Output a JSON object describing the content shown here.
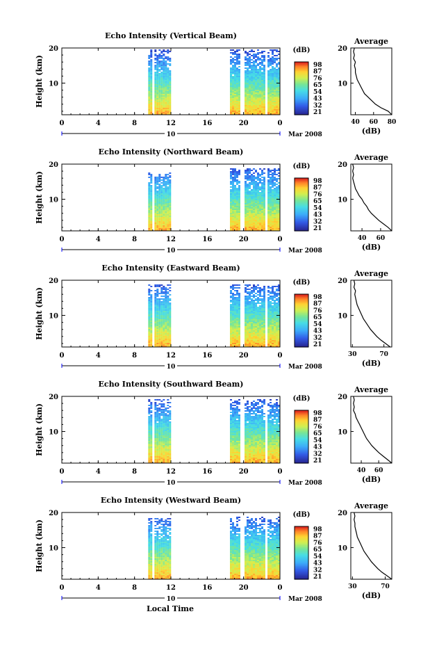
{
  "figure": {
    "xlabel": "Local Time",
    "date_label": "Mar 2008",
    "colorbar_unit": "(dB)",
    "avg_title": "Average",
    "avg_xlabel": "(dB)"
  },
  "chart_data": [
    {
      "type": "heatmap",
      "title": "Echo Intensity (Vertical Beam)",
      "ylabel": "Height (km)",
      "xlabel": "Local Time",
      "x_ticks": [
        "0",
        "4",
        "8",
        "12",
        "16",
        "20",
        "0"
      ],
      "x_range": [
        0,
        24
      ],
      "y_ticks": [
        "10",
        "20"
      ],
      "y_range": [
        1,
        20
      ],
      "date_label": "Mar 2008",
      "day_label": "10",
      "colorbar": {
        "unit": "(dB)",
        "ticks": [
          "98",
          "87",
          "76",
          "65",
          "54",
          "43",
          "32",
          "21"
        ]
      },
      "data_blocks": [
        [
          9.5,
          11.8,
          20
        ],
        [
          18.5,
          24,
          20
        ]
      ],
      "average_profile": {
        "title": "Average",
        "xlabel": "(dB)",
        "x_ticks": [
          "40",
          "60",
          "80"
        ],
        "x_range": [
          35,
          80
        ],
        "y_ticks": [
          "10",
          "20"
        ],
        "points": [
          [
            80,
            1
          ],
          [
            76,
            2
          ],
          [
            68,
            3
          ],
          [
            62,
            4
          ],
          [
            58,
            5
          ],
          [
            54,
            6
          ],
          [
            50,
            7
          ],
          [
            48,
            8
          ],
          [
            46,
            9
          ],
          [
            44,
            10
          ],
          [
            42,
            11
          ],
          [
            41,
            12
          ],
          [
            40,
            13
          ],
          [
            40,
            14
          ],
          [
            39,
            15
          ],
          [
            40,
            16
          ],
          [
            38,
            17
          ],
          [
            39,
            18
          ],
          [
            38,
            19
          ],
          [
            39,
            20
          ]
        ]
      }
    },
    {
      "type": "heatmap",
      "title": "Echo Intensity (Northward Beam)",
      "ylabel": "Height (km)",
      "xlabel": "Local Time",
      "x_ticks": [
        "0",
        "4",
        "8",
        "12",
        "16",
        "20",
        "0"
      ],
      "x_range": [
        0,
        24
      ],
      "y_ticks": [
        "10",
        "20"
      ],
      "y_range": [
        1,
        20
      ],
      "date_label": "Mar 2008",
      "day_label": "10",
      "colorbar": {
        "unit": "(dB)",
        "ticks": [
          "98",
          "87",
          "76",
          "65",
          "54",
          "43",
          "32",
          "21"
        ]
      },
      "data_blocks": [
        [
          9.5,
          11.8,
          18
        ],
        [
          18.5,
          24,
          19
        ]
      ],
      "average_profile": {
        "title": "Average",
        "xlabel": "(dB)",
        "x_ticks": [
          "40",
          "60"
        ],
        "x_range": [
          28,
          72
        ],
        "y_ticks": [
          "10",
          "20"
        ],
        "points": [
          [
            72,
            1
          ],
          [
            68,
            2
          ],
          [
            63,
            3
          ],
          [
            58,
            4
          ],
          [
            54,
            5
          ],
          [
            50,
            6
          ],
          [
            47,
            7
          ],
          [
            45,
            8
          ],
          [
            42,
            9
          ],
          [
            40,
            10
          ],
          [
            37,
            11
          ],
          [
            35,
            12
          ],
          [
            33,
            13
          ],
          [
            32,
            14
          ],
          [
            31,
            15
          ],
          [
            30,
            16
          ],
          [
            31,
            17
          ],
          [
            30,
            18
          ],
          [
            31,
            19
          ],
          [
            30,
            20
          ]
        ]
      }
    },
    {
      "type": "heatmap",
      "title": "Echo Intensity (Eastward Beam)",
      "ylabel": "Height (km)",
      "xlabel": "Local Time",
      "x_ticks": [
        "0",
        "4",
        "8",
        "12",
        "16",
        "20",
        "0"
      ],
      "x_range": [
        0,
        24
      ],
      "y_ticks": [
        "10",
        "20"
      ],
      "y_range": [
        1,
        20
      ],
      "date_label": "Mar 2008",
      "day_label": "10",
      "colorbar": {
        "unit": "(dB)",
        "ticks": [
          "98",
          "87",
          "76",
          "65",
          "54",
          "43",
          "32",
          "21"
        ]
      },
      "data_blocks": [
        [
          9.5,
          11.8,
          19
        ],
        [
          18.5,
          24,
          19
        ]
      ],
      "average_profile": {
        "title": "Average",
        "xlabel": "(dB)",
        "x_ticks": [
          "30",
          "70"
        ],
        "x_range": [
          28,
          80
        ],
        "y_ticks": [
          "10",
          "20"
        ],
        "points": [
          [
            78,
            1
          ],
          [
            72,
            2
          ],
          [
            66,
            3
          ],
          [
            61,
            4
          ],
          [
            57,
            5
          ],
          [
            53,
            6
          ],
          [
            50,
            7
          ],
          [
            47,
            8
          ],
          [
            44,
            9
          ],
          [
            42,
            10
          ],
          [
            40,
            11
          ],
          [
            38,
            12
          ],
          [
            36,
            13
          ],
          [
            35,
            14
          ],
          [
            34,
            15
          ],
          [
            33,
            16
          ],
          [
            34,
            17
          ],
          [
            32,
            18
          ],
          [
            33,
            19
          ],
          [
            32,
            20
          ]
        ]
      }
    },
    {
      "type": "heatmap",
      "title": "Echo Intensity (Southward Beam)",
      "ylabel": "Height (km)",
      "xlabel": "Local Time",
      "x_ticks": [
        "0",
        "4",
        "8",
        "12",
        "16",
        "20",
        "0"
      ],
      "x_range": [
        0,
        24
      ],
      "y_ticks": [
        "10",
        "20"
      ],
      "y_range": [
        1,
        20
      ],
      "date_label": "Mar 2008",
      "day_label": "10",
      "colorbar": {
        "unit": "(dB)",
        "ticks": [
          "98",
          "87",
          "76",
          "65",
          "54",
          "43",
          "32",
          "21"
        ]
      },
      "data_blocks": [
        [
          9.5,
          11.8,
          19.5
        ],
        [
          18.5,
          24,
          19.5
        ]
      ],
      "average_profile": {
        "title": "Average",
        "xlabel": "(dB)",
        "x_ticks": [
          "40",
          "60"
        ],
        "x_range": [
          28,
          75
        ],
        "y_ticks": [
          "10",
          "20"
        ],
        "points": [
          [
            75,
            1
          ],
          [
            70,
            2
          ],
          [
            65,
            3
          ],
          [
            60,
            4
          ],
          [
            56,
            5
          ],
          [
            52,
            6
          ],
          [
            49,
            7
          ],
          [
            46,
            8
          ],
          [
            44,
            9
          ],
          [
            42,
            10
          ],
          [
            40,
            11
          ],
          [
            38,
            12
          ],
          [
            36,
            13
          ],
          [
            34,
            14
          ],
          [
            33,
            15
          ],
          [
            31,
            16
          ],
          [
            32,
            17
          ],
          [
            31,
            18
          ],
          [
            32,
            19
          ],
          [
            31,
            20
          ]
        ]
      }
    },
    {
      "type": "heatmap",
      "title": "Echo Intensity (Westward Beam)",
      "ylabel": "Height (km)",
      "xlabel": "Local Time",
      "x_ticks": [
        "0",
        "4",
        "8",
        "12",
        "16",
        "20",
        "0"
      ],
      "x_range": [
        0,
        24
      ],
      "y_ticks": [
        "10",
        "20"
      ],
      "y_range": [
        1,
        20
      ],
      "date_label": "Mar 2008",
      "day_label": "10",
      "colorbar": {
        "unit": "(dB)",
        "ticks": [
          "98",
          "87",
          "76",
          "65",
          "54",
          "43",
          "32",
          "21"
        ]
      },
      "data_blocks": [
        [
          9.5,
          11.8,
          18.5
        ],
        [
          18.5,
          24,
          19
        ]
      ],
      "average_profile": {
        "title": "Average",
        "xlabel": "(dB)",
        "x_ticks": [
          "30",
          "70"
        ],
        "x_range": [
          28,
          78
        ],
        "y_ticks": [
          "10",
          "20"
        ],
        "points": [
          [
            78,
            1
          ],
          [
            72,
            2
          ],
          [
            66,
            3
          ],
          [
            61,
            4
          ],
          [
            57,
            5
          ],
          [
            53,
            6
          ],
          [
            50,
            7
          ],
          [
            47,
            8
          ],
          [
            44,
            9
          ],
          [
            42,
            10
          ],
          [
            40,
            11
          ],
          [
            38,
            12
          ],
          [
            36,
            13
          ],
          [
            35,
            14
          ],
          [
            34,
            15
          ],
          [
            33,
            16
          ],
          [
            33,
            17
          ],
          [
            32,
            18
          ],
          [
            33,
            19
          ],
          [
            32,
            20
          ]
        ]
      }
    }
  ]
}
